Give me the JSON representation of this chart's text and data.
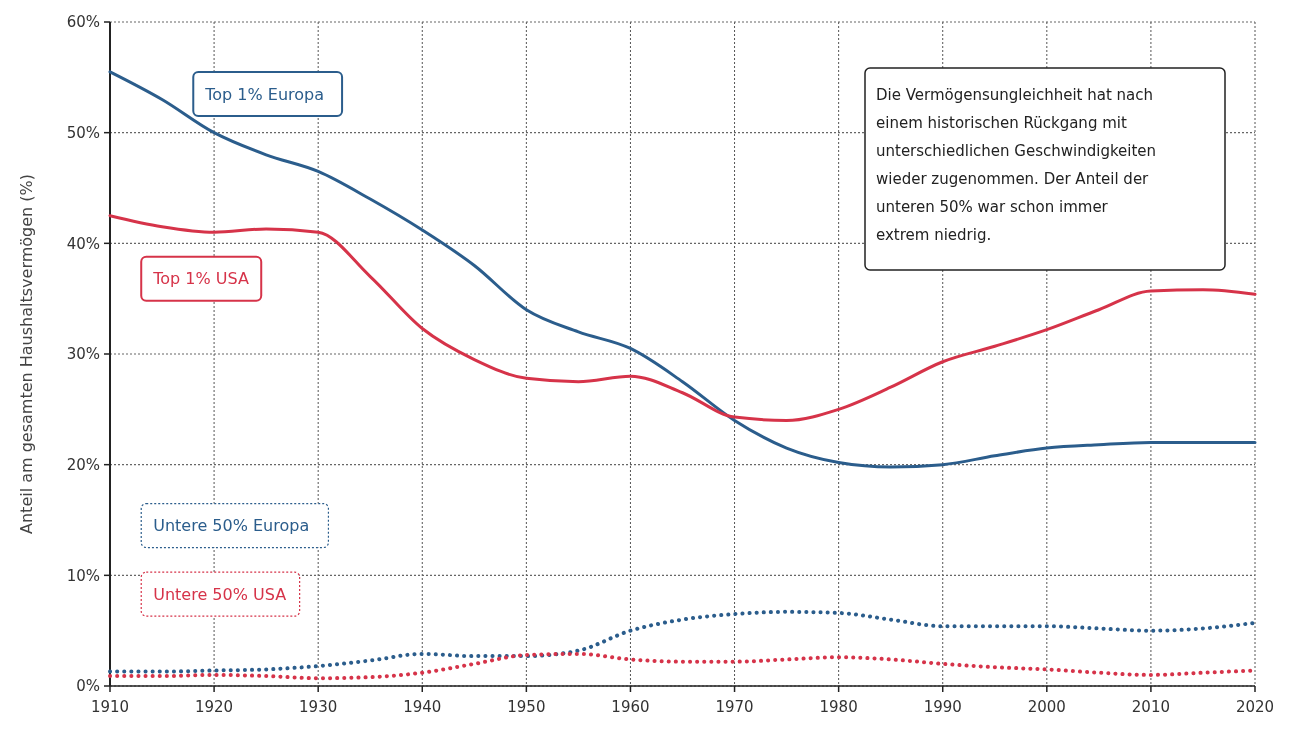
{
  "chart_data": {
    "type": "line",
    "ylabel": "Anteil am gesamten Haushaltsvermögen (%)",
    "x": [
      1910,
      1915,
      1920,
      1925,
      1930,
      1935,
      1940,
      1945,
      1950,
      1955,
      1960,
      1965,
      1970,
      1975,
      1980,
      1985,
      1990,
      1995,
      2000,
      2005,
      2010,
      2015,
      2020
    ],
    "series": [
      {
        "name": "Top 1% Europa",
        "color": "#2b5d8c",
        "line_style": "solid",
        "values": [
          55.5,
          53,
          50,
          48,
          46.5,
          44,
          41.2,
          38,
          34,
          32,
          30.5,
          27.5,
          24,
          21.5,
          20.2,
          19.8,
          20,
          20.8,
          21.5,
          21.8,
          22,
          22,
          22
        ]
      },
      {
        "name": "Top 1% USA",
        "color": "#d63349",
        "line_style": "solid",
        "values": [
          42.5,
          41.5,
          41,
          41.3,
          41,
          37,
          32.3,
          29.5,
          27.8,
          27.5,
          28,
          26.5,
          24.3,
          24,
          25,
          27,
          29.3,
          30.7,
          32.2,
          34,
          35.7,
          35.8,
          35.4
        ]
      },
      {
        "name": "Untere 50% Europa",
        "color": "#2b5d8c",
        "line_style": "dotted",
        "values": [
          1.3,
          1.3,
          1.4,
          1.5,
          1.8,
          2.3,
          2.9,
          2.7,
          2.7,
          3.2,
          5,
          6,
          6.5,
          6.7,
          6.6,
          6,
          5.4,
          5.4,
          5.4,
          5.2,
          5,
          5.2,
          5.7
        ]
      },
      {
        "name": "Untere 50% USA",
        "color": "#d63349",
        "line_style": "dotted",
        "values": [
          0.9,
          0.9,
          1,
          0.9,
          0.7,
          0.8,
          1.2,
          2,
          2.8,
          2.9,
          2.4,
          2.2,
          2.2,
          2.4,
          2.6,
          2.4,
          2,
          1.7,
          1.5,
          1.2,
          1,
          1.2,
          1.4
        ]
      }
    ],
    "xlim": [
      1910,
      2020
    ],
    "xticks": [
      1910,
      1920,
      1930,
      1940,
      1950,
      1960,
      1970,
      1980,
      1990,
      2000,
      2010,
      2020
    ],
    "ylim": [
      0,
      60
    ],
    "yticks": [
      {
        "value": 0,
        "label": "0%"
      },
      {
        "value": 10,
        "label": "10%"
      },
      {
        "value": 20,
        "label": "20%"
      },
      {
        "value": 30,
        "label": "30%"
      },
      {
        "value": 40,
        "label": "40%"
      },
      {
        "value": 50,
        "label": "50%"
      },
      {
        "value": 60,
        "label": "60%"
      }
    ],
    "grid": true,
    "marker": "none",
    "annotations": [
      "Die Vermögensungleichheit hat nach\neinem historischen Rückgang mit\nunterschiedlichen Geschwindigkeiten\nwieder zugenommen. Der Anteil der\nunteren 50% war schon immer\nextrem niedrig."
    ]
  }
}
